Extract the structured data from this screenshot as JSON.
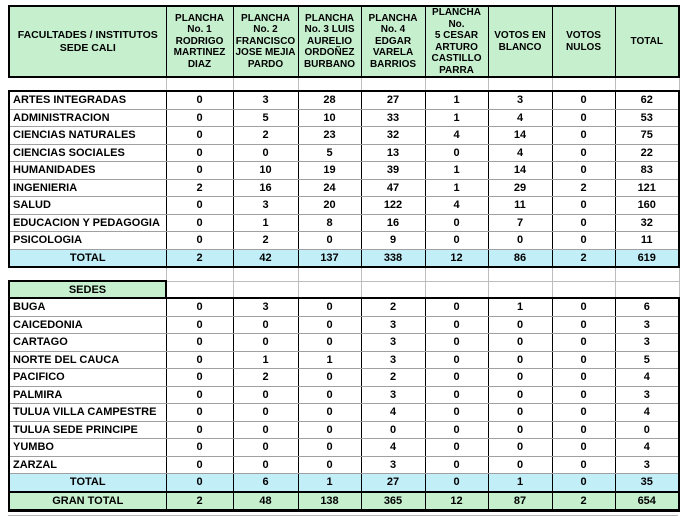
{
  "colors": {
    "header_green": "#c6efce",
    "total_cyan": "#c2eef8",
    "gran_total_green": "#c6efce",
    "grid_black": "#000000",
    "grid_gray": "#a0a0a0"
  },
  "table": {
    "corner_header": "FACULTADES / INSTITUTOS\nSEDE CALI",
    "columns": [
      "PLANCHA\nNo. 1\nRODRIGO\nMARTINEZ\nDIAZ",
      "PLANCHA\nNo. 2\nFRANCISCO\nJOSE MEJIA\nPARDO",
      "PLANCHA\nNo. 3 LUIS\nAURELIO\nORDOÑEZ\nBURBANO",
      "PLANCHA\nNo. 4 EDGAR\nVARELA\nBARRIOS",
      "PLANCHA No.\n5 CESAR\nARTURO\nCASTILLO\nPARRA",
      "VOTOS EN\nBLANCO",
      "VOTOS\nNULOS",
      "TOTAL"
    ],
    "sections": [
      {
        "name": "faculties",
        "rows": [
          {
            "label": "ARTES INTEGRADAS",
            "values": [
              0,
              3,
              28,
              27,
              1,
              3,
              0,
              62
            ]
          },
          {
            "label": "ADMINISTRACION",
            "values": [
              0,
              5,
              10,
              33,
              1,
              4,
              0,
              53
            ]
          },
          {
            "label": "CIENCIAS NATURALES",
            "values": [
              0,
              2,
              23,
              32,
              4,
              14,
              0,
              75
            ]
          },
          {
            "label": "CIENCIAS SOCIALES",
            "values": [
              0,
              0,
              5,
              13,
              0,
              4,
              0,
              22
            ]
          },
          {
            "label": "HUMANIDADES",
            "values": [
              0,
              10,
              19,
              39,
              1,
              14,
              0,
              83
            ]
          },
          {
            "label": "INGENIERIA",
            "values": [
              2,
              16,
              24,
              47,
              1,
              29,
              2,
              121
            ]
          },
          {
            "label": "SALUD",
            "values": [
              0,
              3,
              20,
              122,
              4,
              11,
              0,
              160
            ]
          },
          {
            "label": "EDUCACION Y PEDAGOGIA",
            "values": [
              0,
              1,
              8,
              16,
              0,
              7,
              0,
              32
            ]
          },
          {
            "label": "PSICOLOGIA",
            "values": [
              0,
              2,
              0,
              9,
              0,
              0,
              0,
              11
            ]
          }
        ],
        "total_row": {
          "label": "TOTAL",
          "values": [
            2,
            42,
            137,
            338,
            12,
            86,
            2,
            619
          ]
        }
      },
      {
        "name": "sedes",
        "header": "SEDES",
        "rows": [
          {
            "label": "BUGA",
            "values": [
              0,
              3,
              0,
              2,
              0,
              1,
              0,
              6
            ]
          },
          {
            "label": "CAICEDONIA",
            "values": [
              0,
              0,
              0,
              3,
              0,
              0,
              0,
              3
            ]
          },
          {
            "label": "CARTAGO",
            "values": [
              0,
              0,
              0,
              3,
              0,
              0,
              0,
              3
            ]
          },
          {
            "label": "NORTE DEL CAUCA",
            "values": [
              0,
              1,
              1,
              3,
              0,
              0,
              0,
              5
            ]
          },
          {
            "label": "PACIFICO",
            "values": [
              0,
              2,
              0,
              2,
              0,
              0,
              0,
              4
            ]
          },
          {
            "label": "PALMIRA",
            "values": [
              0,
              0,
              0,
              3,
              0,
              0,
              0,
              3
            ]
          },
          {
            "label": "TULUA VILLA CAMPESTRE",
            "values": [
              0,
              0,
              0,
              4,
              0,
              0,
              0,
              4
            ]
          },
          {
            "label": "TULUA SEDE PRINCIPE",
            "values": [
              0,
              0,
              0,
              0,
              0,
              0,
              0,
              0
            ]
          },
          {
            "label": "YUMBO",
            "values": [
              0,
              0,
              0,
              4,
              0,
              0,
              0,
              4
            ]
          },
          {
            "label": "ZARZAL",
            "values": [
              0,
              0,
              0,
              3,
              0,
              0,
              0,
              3
            ]
          }
        ],
        "total_row": {
          "label": "TOTAL",
          "values": [
            0,
            6,
            1,
            27,
            0,
            1,
            0,
            35
          ]
        }
      }
    ],
    "gran_total_row": {
      "label": "GRAN TOTAL",
      "values": [
        2,
        48,
        138,
        365,
        12,
        87,
        2,
        654
      ]
    }
  }
}
